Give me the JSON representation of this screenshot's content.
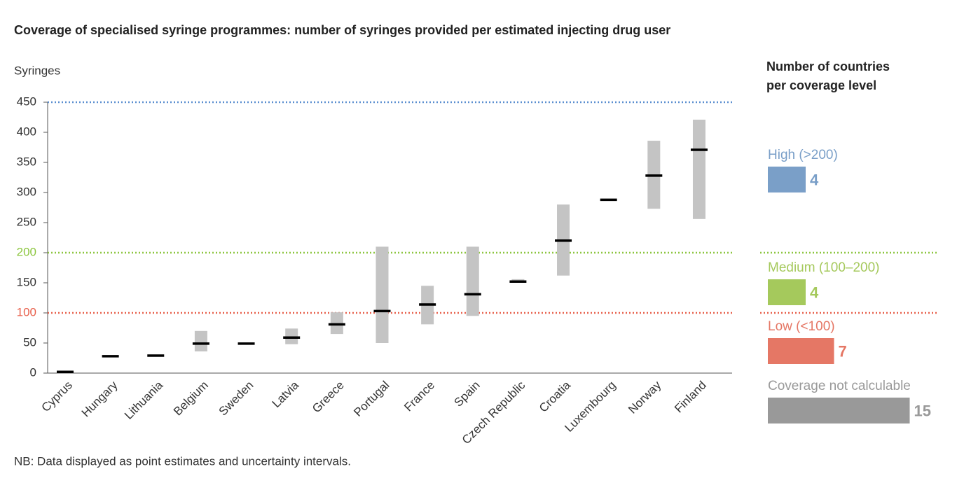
{
  "chart_data": [
    {
      "type": "range",
      "title": "Coverage of specialised syringe programmes: number of syringes provided per estimated injecting drug user",
      "y_label": "Syringes",
      "note": "NB: Data displayed as point estimates and uncertainty intervals.",
      "categories": [
        "Cyprus",
        "Hungary",
        "Lithuania",
        "Belgium",
        "Sweden",
        "Latvia",
        "Greece",
        "Portugal",
        "France",
        "Spain",
        "Czech Republic",
        "Croatia",
        "Luxembourg",
        "Norway",
        "Finland"
      ],
      "values": [
        2,
        28,
        29,
        49,
        49,
        59,
        81,
        103,
        114,
        131,
        152,
        220,
        288,
        328,
        371
      ],
      "low": [
        null,
        null,
        null,
        36,
        null,
        48,
        65,
        50,
        81,
        95,
        150,
        162,
        null,
        273,
        256
      ],
      "high": [
        null,
        null,
        null,
        70,
        null,
        74,
        101,
        210,
        145,
        210,
        156,
        280,
        null,
        386,
        421
      ],
      "ylim": [
        0,
        450
      ],
      "yticks": [
        0,
        50,
        100,
        150,
        200,
        250,
        300,
        350,
        400,
        450
      ],
      "ytick_colors": [
        "#333333",
        "#333333",
        "#e8604c",
        "#333333",
        "#8cc63f",
        "#333333",
        "#333333",
        "#333333",
        "#333333",
        "#333333"
      ],
      "reference_lines": [
        {
          "value": 450,
          "color": "#5b8fd0",
          "span_legend": false
        },
        {
          "value": 200,
          "color": "#8cc63f",
          "span_legend": true
        },
        {
          "value": 100,
          "color": "#e8604c",
          "span_legend": true
        }
      ],
      "point_color": "#000000",
      "interval_color": "#c4c4c4"
    },
    {
      "type": "hbar",
      "title": "Number of countries per coverage level",
      "categories": [
        "High (>200)",
        "Medium (100–200)",
        "Low (<100)",
        "Coverage not calculable"
      ],
      "values": [
        4,
        4,
        7,
        15
      ],
      "colors": [
        "#7a9fc8",
        "#a5c95c",
        "#e57765",
        "#999999"
      ]
    }
  ]
}
